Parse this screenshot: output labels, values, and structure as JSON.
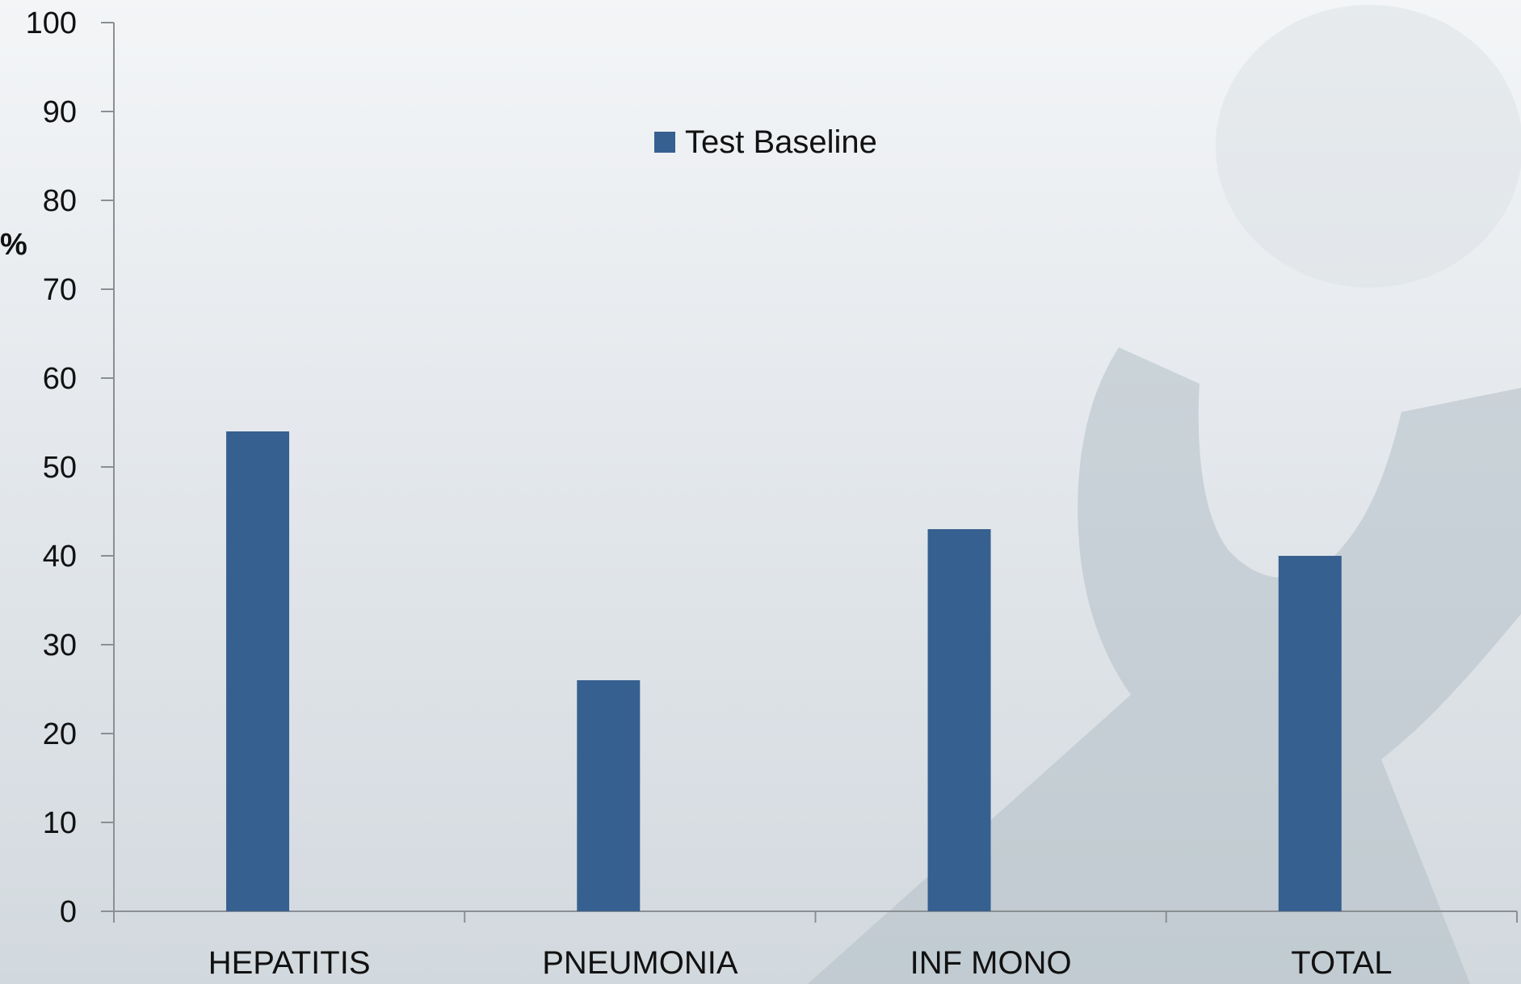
{
  "chart_data": {
    "type": "bar",
    "title": "",
    "xlabel": "",
    "ylabel": "%",
    "categories": [
      "HEPATITIS",
      "PNEUMONIA",
      "INF MONO",
      "TOTAL"
    ],
    "series": [
      {
        "name": "Test Baseline",
        "values": [
          54,
          26,
          43,
          40
        ],
        "color": "#36608f"
      }
    ],
    "ylim": [
      0,
      100
    ],
    "yticks": [
      0,
      10,
      20,
      30,
      40,
      50,
      60,
      70,
      80,
      90,
      100
    ],
    "grid": false,
    "legend_position": "top-center"
  },
  "colors": {
    "axis": "#8a8f94",
    "bar": "#36608f",
    "background_watermark": "#b3c0c6"
  }
}
